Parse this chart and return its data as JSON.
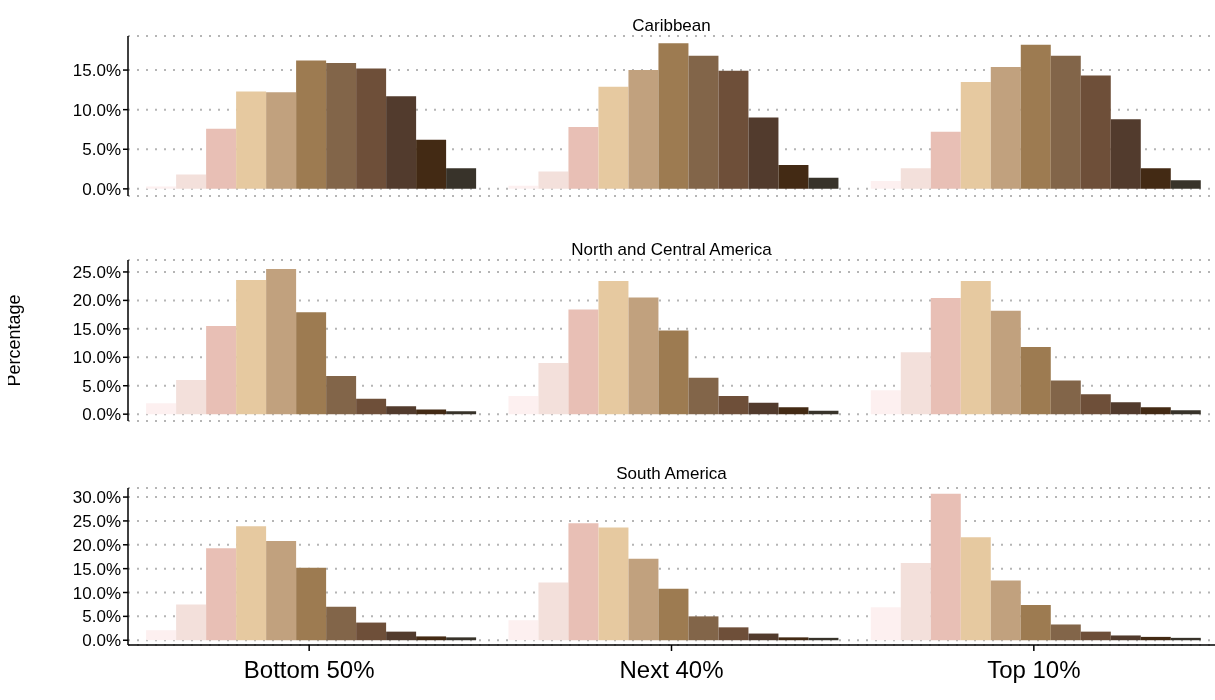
{
  "chart_data": [
    {
      "type": "bar",
      "title": "Caribbean",
      "categories": [
        null,
        null,
        null
      ],
      "tick_labels": "y",
      "grid": "y",
      "legend": false,
      "ylim": [
        -0.9,
        19.3
      ],
      "yticks": [
        {
          "value": 0,
          "label": "0.0%"
        },
        {
          "value": 5,
          "label": "5.0%"
        },
        {
          "value": 10,
          "label": "10.0%"
        },
        {
          "value": 15,
          "label": "15.0%"
        }
      ],
      "series": [
        {
          "color": "#fdf0f0",
          "values": [
            0.3,
            0.4,
            1.0
          ]
        },
        {
          "color": "#f3e0db",
          "values": [
            1.8,
            2.2,
            2.6
          ]
        },
        {
          "color": "#e8bfb5",
          "values": [
            7.6,
            7.8,
            7.2
          ]
        },
        {
          "color": "#e6c9a0",
          "values": [
            12.3,
            12.9,
            13.5
          ]
        },
        {
          "color": "#c1a17e",
          "values": [
            12.2,
            15.0,
            15.4
          ]
        },
        {
          "color": "#9d7b51",
          "values": [
            16.2,
            18.4,
            18.2
          ]
        },
        {
          "color": "#826549",
          "values": [
            15.9,
            16.8,
            16.8
          ]
        },
        {
          "color": "#6e4f39",
          "values": [
            15.2,
            14.9,
            14.3
          ]
        },
        {
          "color": "#523b2d",
          "values": [
            11.7,
            9.0,
            8.8
          ]
        },
        {
          "color": "#432a14",
          "values": [
            6.2,
            3.0,
            2.6
          ]
        },
        {
          "color": "#38332a",
          "values": [
            2.6,
            1.4,
            1.1
          ]
        }
      ]
    },
    {
      "type": "bar",
      "title": "North and Central America",
      "ylabel": "Percentage",
      "categories": [
        null,
        null,
        null
      ],
      "tick_labels": "y",
      "grid": "y",
      "legend": false,
      "ylim": [
        -1.2,
        27.1
      ],
      "yticks": [
        {
          "value": 0,
          "label": "0.0%"
        },
        {
          "value": 5,
          "label": "5.0%"
        },
        {
          "value": 10,
          "label": "10.0%"
        },
        {
          "value": 15,
          "label": "15.0%"
        },
        {
          "value": 20,
          "label": "20.0%"
        },
        {
          "value": 25,
          "label": "25.0%"
        }
      ],
      "series": [
        {
          "color": "#fdf0f0",
          "values": [
            1.9,
            3.2,
            4.2
          ]
        },
        {
          "color": "#f3e0db",
          "values": [
            6.0,
            9.0,
            10.9
          ]
        },
        {
          "color": "#e8bfb5",
          "values": [
            15.5,
            18.4,
            20.4
          ]
        },
        {
          "color": "#e6c9a0",
          "values": [
            23.6,
            23.4,
            23.4
          ]
        },
        {
          "color": "#c1a17e",
          "values": [
            25.5,
            20.5,
            18.2
          ]
        },
        {
          "color": "#9d7b51",
          "values": [
            17.9,
            14.7,
            11.8
          ]
        },
        {
          "color": "#826549",
          "values": [
            6.7,
            6.4,
            5.9
          ]
        },
        {
          "color": "#6e4f39",
          "values": [
            2.7,
            3.2,
            3.5
          ]
        },
        {
          "color": "#523b2d",
          "values": [
            1.4,
            2.0,
            2.1
          ]
        },
        {
          "color": "#432a14",
          "values": [
            0.8,
            1.2,
            1.2
          ]
        },
        {
          "color": "#38332a",
          "values": [
            0.5,
            0.6,
            0.7
          ]
        }
      ]
    },
    {
      "type": "bar",
      "title": "South America",
      "categories": [
        "Bottom 50%",
        "Next 40%",
        "Top 10%"
      ],
      "grid": "y",
      "legend": false,
      "ylim": [
        -1.0,
        31.9
      ],
      "yticks": [
        {
          "value": 0,
          "label": "0.0%"
        },
        {
          "value": 5,
          "label": "5.0%"
        },
        {
          "value": 10,
          "label": "10.0%"
        },
        {
          "value": 15,
          "label": "15.0%"
        },
        {
          "value": 20,
          "label": "20.0%"
        },
        {
          "value": 25,
          "label": "25.0%"
        },
        {
          "value": 30,
          "label": "30.0%"
        }
      ],
      "series": [
        {
          "color": "#fdf0f0",
          "values": [
            2.1,
            4.2,
            6.9
          ]
        },
        {
          "color": "#f3e0db",
          "values": [
            7.5,
            12.1,
            16.2
          ]
        },
        {
          "color": "#e8bfb5",
          "values": [
            19.3,
            24.5,
            30.7
          ]
        },
        {
          "color": "#e6c9a0",
          "values": [
            23.9,
            23.6,
            21.6
          ]
        },
        {
          "color": "#c1a17e",
          "values": [
            20.8,
            17.1,
            12.5
          ]
        },
        {
          "color": "#9d7b51",
          "values": [
            15.2,
            10.8,
            7.4
          ]
        },
        {
          "color": "#826549",
          "values": [
            7.0,
            5.0,
            3.3
          ]
        },
        {
          "color": "#6e4f39",
          "values": [
            3.7,
            2.7,
            1.8
          ]
        },
        {
          "color": "#523b2d",
          "values": [
            1.8,
            1.4,
            1.0
          ]
        },
        {
          "color": "#432a14",
          "values": [
            0.8,
            0.6,
            0.7
          ]
        },
        {
          "color": "#38332a",
          "values": [
            0.6,
            0.5,
            0.5
          ]
        }
      ]
    }
  ]
}
